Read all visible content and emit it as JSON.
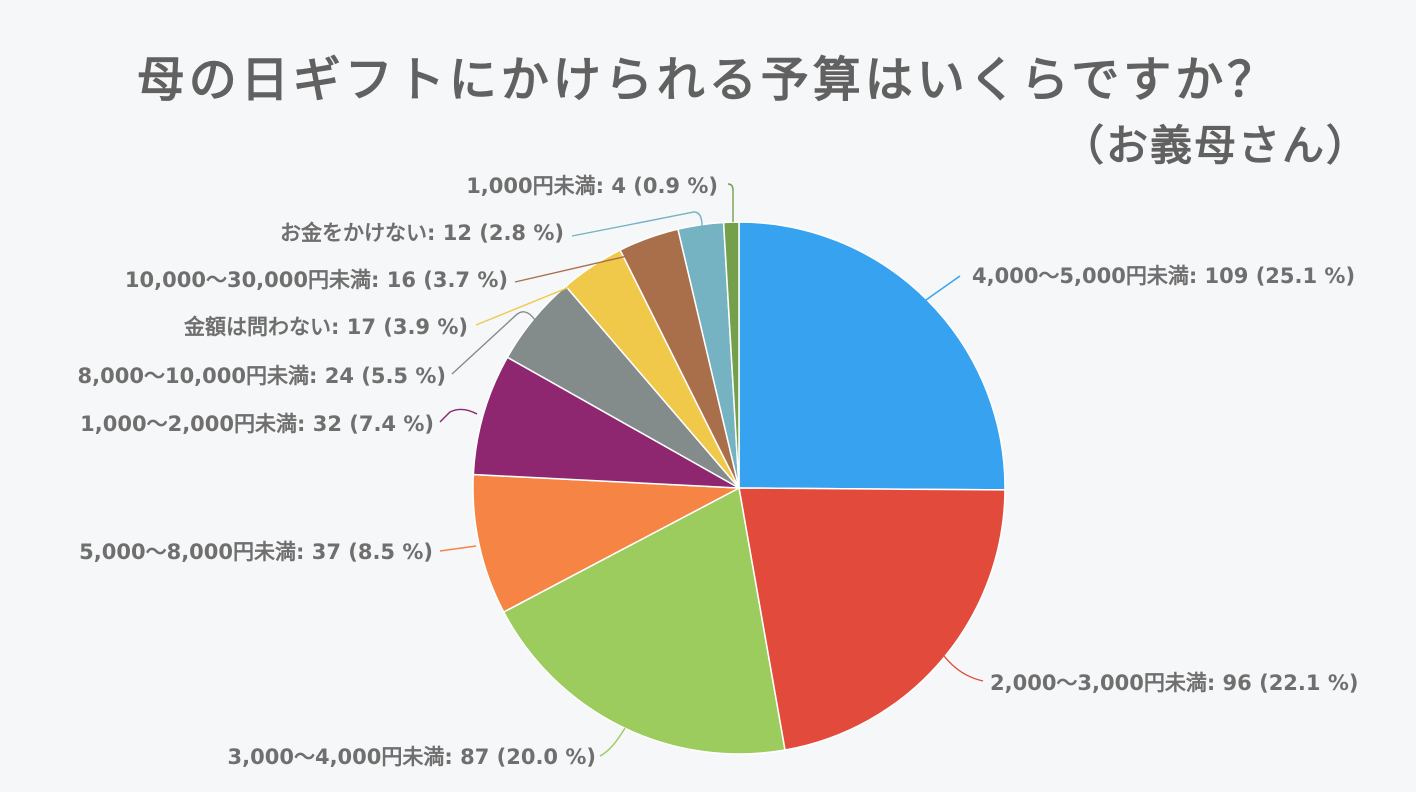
{
  "header": {
    "title": "母の日ギフトにかけられる予算はいくらですか？",
    "subtitle": "（お義母さん）"
  },
  "chart_data": {
    "type": "pie",
    "title": "母の日ギフトにかけられる予算はいくらですか？（お義母さん）",
    "start_angle_deg": 0,
    "direction": "clockwise",
    "total": 434,
    "slices": [
      {
        "label": "4,000〜5,000円未満",
        "value": 109,
        "percent": 25.1,
        "color": "#36a2f0"
      },
      {
        "label": "2,000〜3,000円未満",
        "value": 96,
        "percent": 22.1,
        "color": "#e24b3b"
      },
      {
        "label": "3,000〜4,000円未満",
        "value": 87,
        "percent": 20.0,
        "color": "#9ccb5e"
      },
      {
        "label": "5,000〜8,000円未満",
        "value": 37,
        "percent": 8.5,
        "color": "#f58445"
      },
      {
        "label": "1,000〜2,000円未満",
        "value": 32,
        "percent": 7.4,
        "color": "#8e2670"
      },
      {
        "label": "8,000〜10,000円未満",
        "value": 24,
        "percent": 5.5,
        "color": "#848b8b"
      },
      {
        "label": "金額は問わない",
        "value": 17,
        "percent": 3.9,
        "color": "#f0c84a"
      },
      {
        "label": "10,000〜30,000円未満",
        "value": 16,
        "percent": 3.7,
        "color": "#a96f4b"
      },
      {
        "label": "お金をかけない",
        "value": 12,
        "percent": 2.8,
        "color": "#76b3c2"
      },
      {
        "label": "1,000円未満",
        "value": 4,
        "percent": 0.9,
        "color": "#74a04c"
      }
    ],
    "legend": "none (outside labels with leader lines)"
  },
  "labels": [
    "4,000〜5,000円未満: 109 (25.1 %)",
    "2,000〜3,000円未満: 96 (22.1 %)",
    "3,000〜4,000円未満: 87 (20.0 %)",
    "5,000〜8,000円未満: 37 (8.5 %)",
    "1,000〜2,000円未満: 32 (7.4 %)",
    "8,000〜10,000円未満: 24 (5.5 %)",
    "金額は問わない: 17 (3.9 %)",
    "10,000〜30,000円未満: 16 (3.7 %)",
    "お金をかけない: 12 (2.8 %)",
    "1,000円未満: 4 (0.9 %)"
  ]
}
